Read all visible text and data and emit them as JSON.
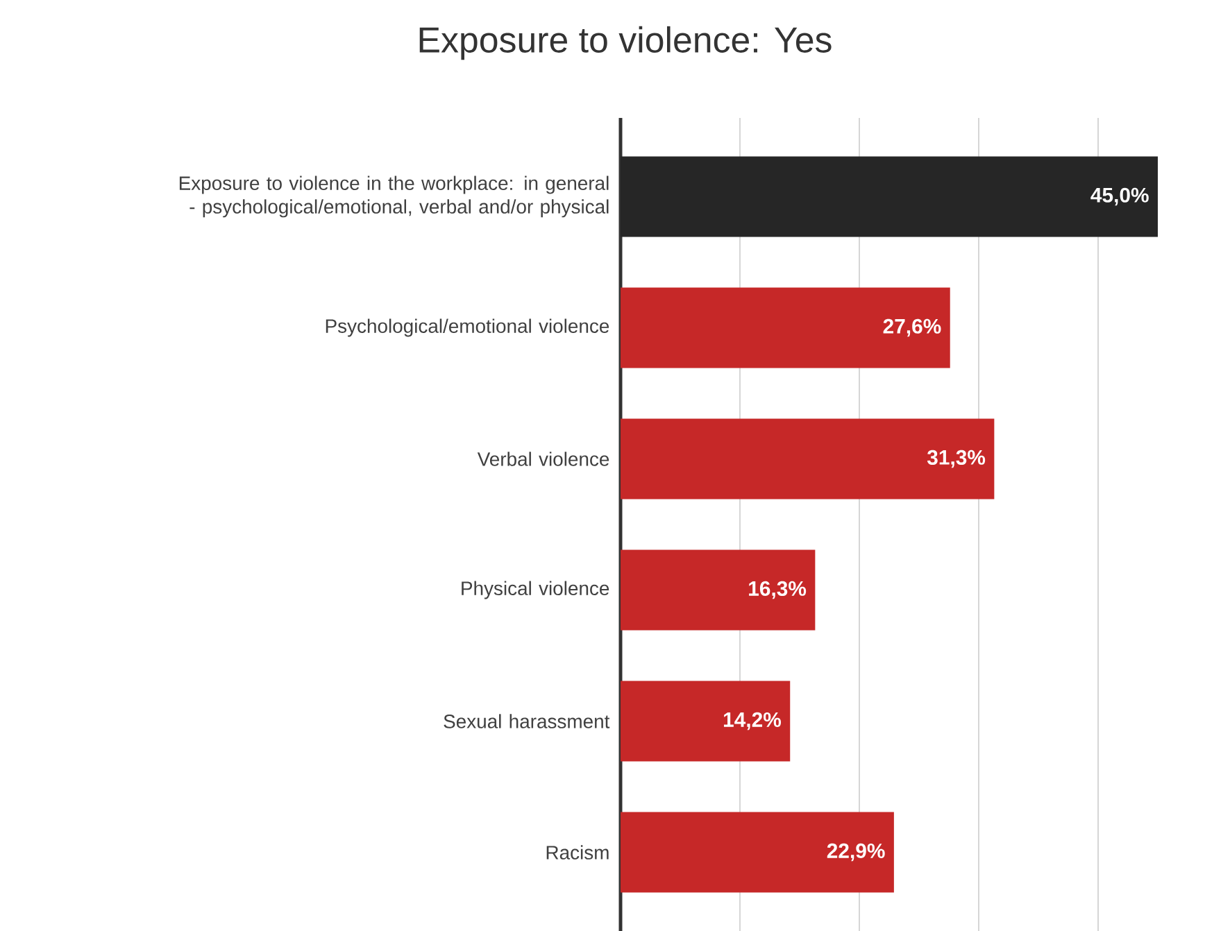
{
  "chart_data": {
    "type": "bar",
    "orientation": "horizontal",
    "title": "Exposure to violence: Yes",
    "categories": [
      "Exposure to violence in the workplace: in general - psychological/emotional, verbal and/or physical",
      "Psychological/emotional violence",
      "Verbal violence",
      "Physical violence",
      "Sexual harassment",
      "Racism"
    ],
    "values": [
      45.0,
      27.6,
      31.3,
      16.3,
      14.2,
      22.9
    ],
    "value_labels": [
      "45,0%",
      "27,6%",
      "31,3%",
      "16,3%",
      "14,2%",
      "22,9%"
    ],
    "colors": [
      "#262626",
      "#c62828",
      "#c62828",
      "#c62828",
      "#c62828",
      "#c62828"
    ],
    "xlim": [
      0,
      45
    ],
    "xticks": [
      {
        "value": 0,
        "label": null
      },
      {
        "value": 10,
        "label": null
      },
      {
        "value": 20,
        "label": null
      },
      {
        "value": 30,
        "label": null
      },
      {
        "value": 40,
        "label": null
      }
    ],
    "grid": "x"
  }
}
